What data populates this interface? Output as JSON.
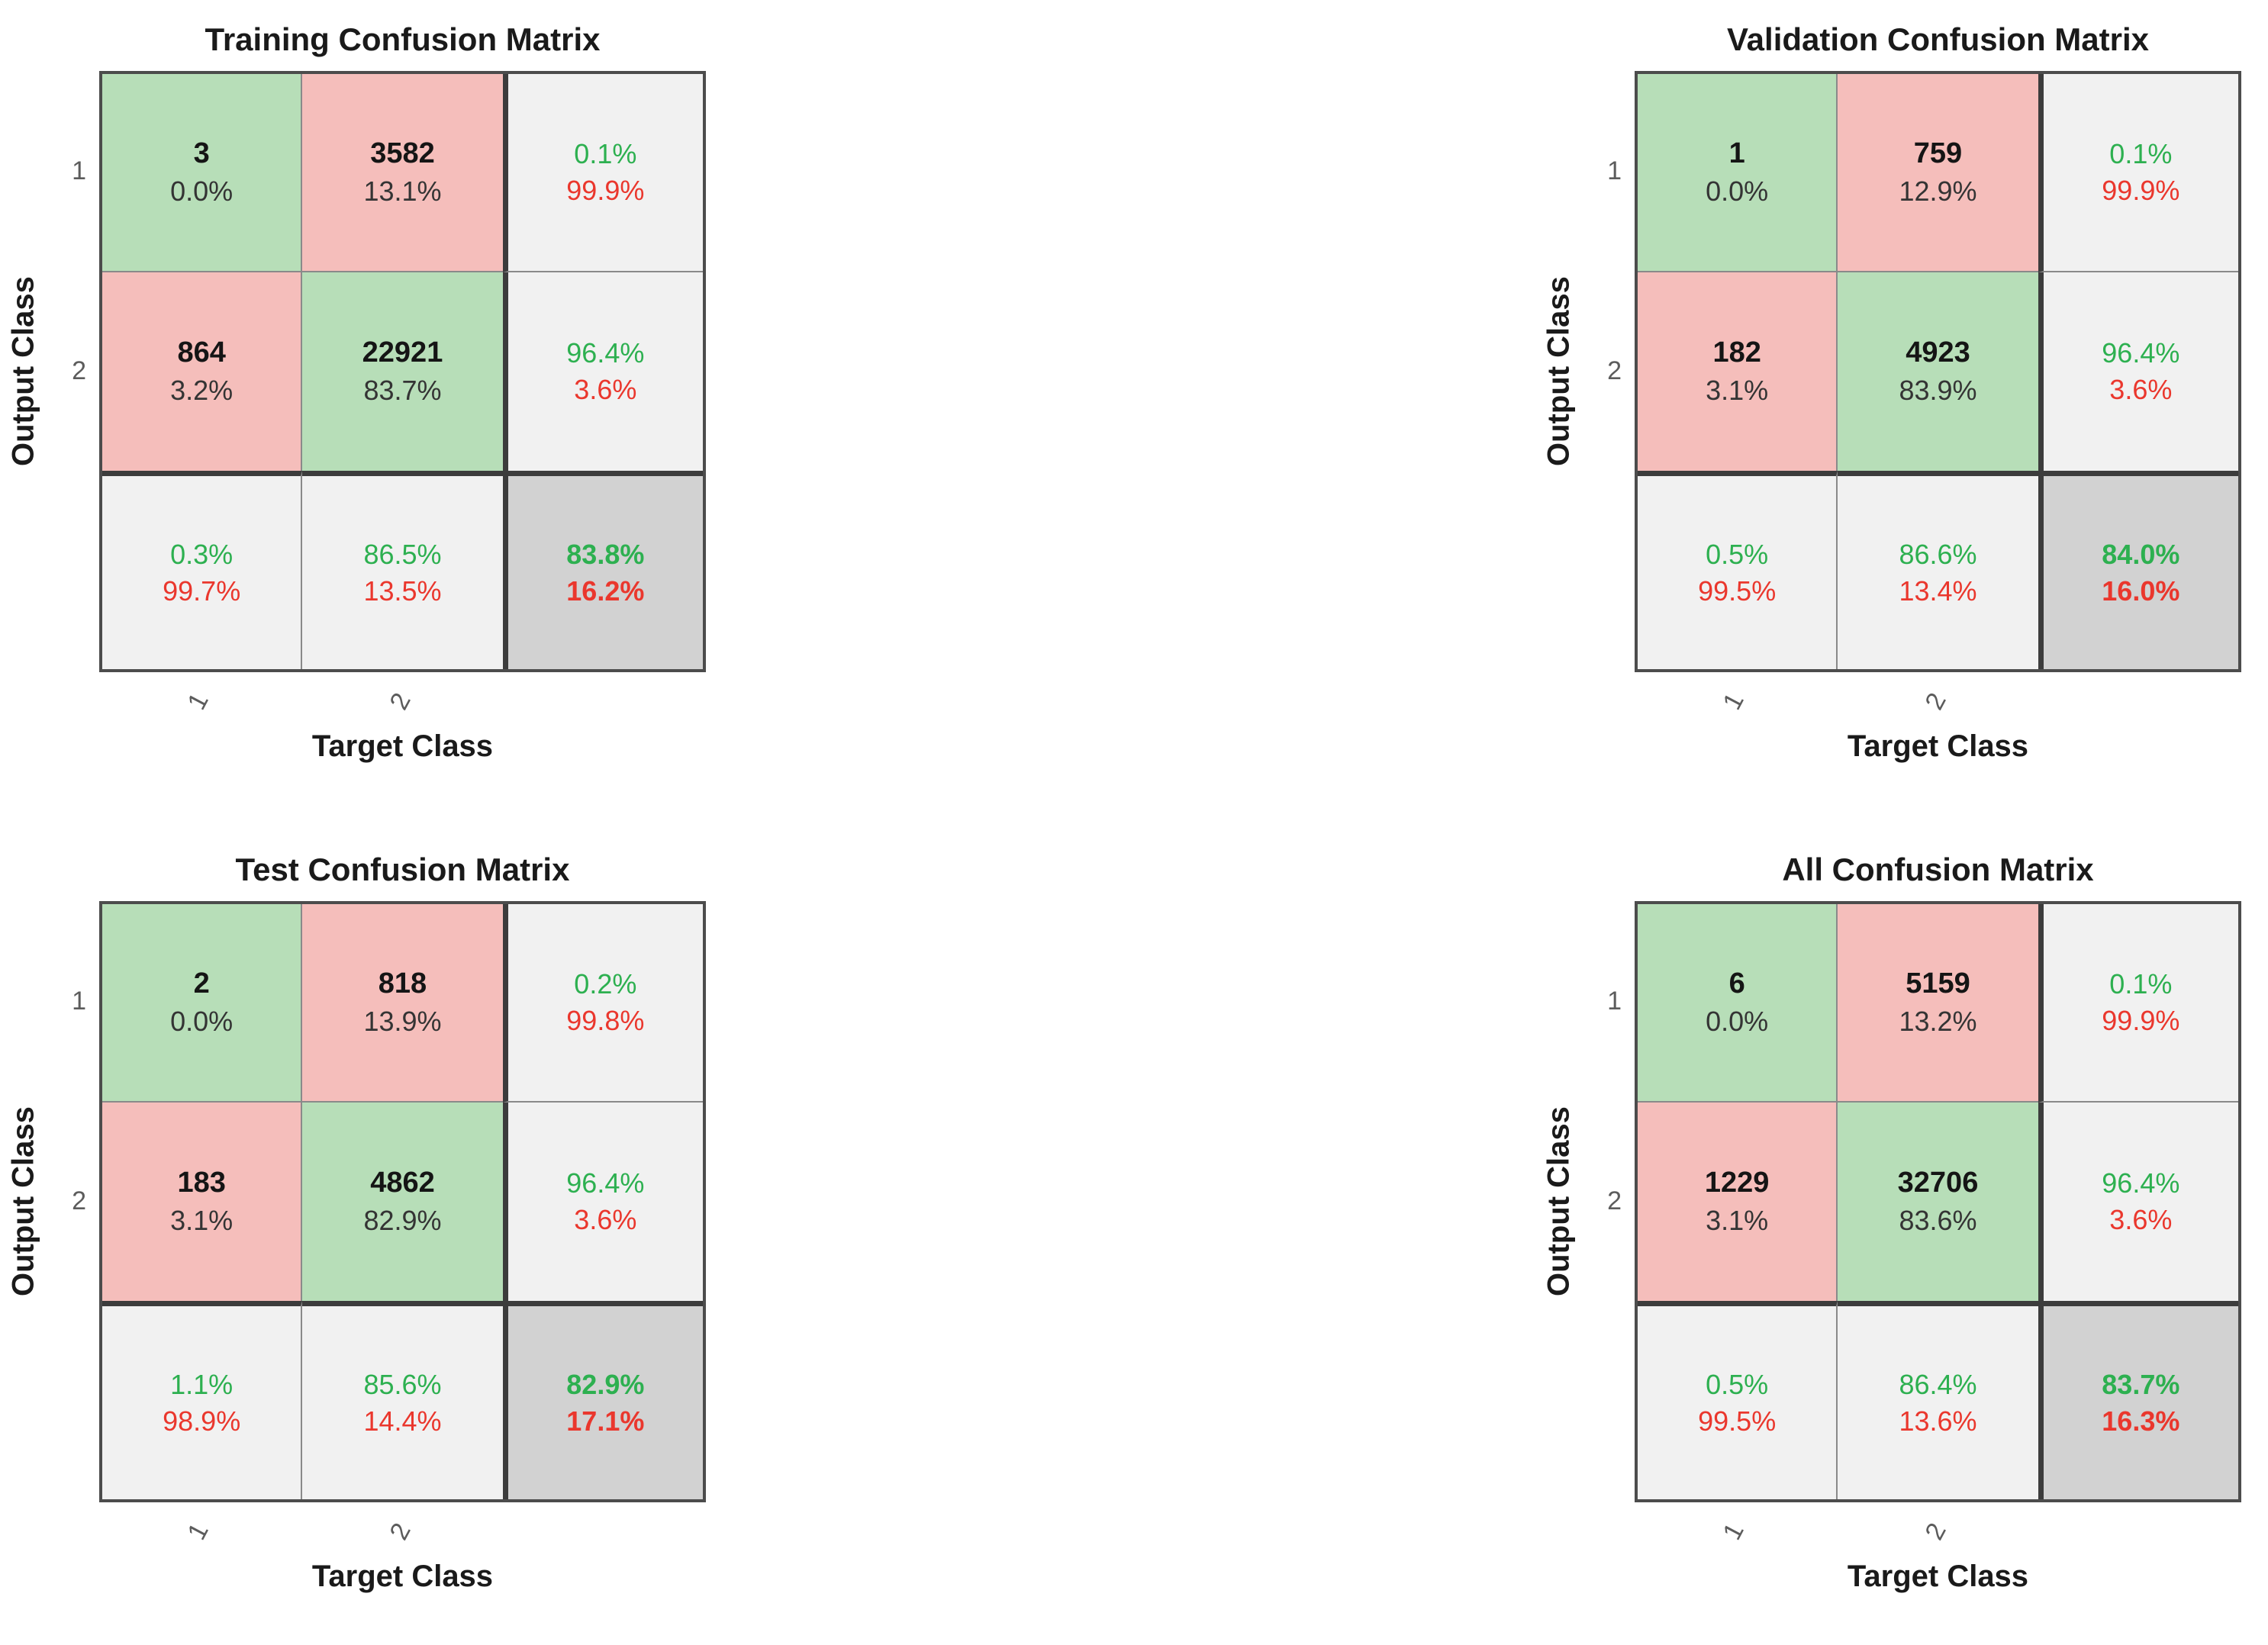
{
  "figure": {
    "background": "#ffffff"
  },
  "colors": {
    "cell_green": "#b7deb8",
    "cell_red": "#f5bebb",
    "cell_gray": "#f1f1f1",
    "cell_gray_dark": "#d2d2d2",
    "text_green": "#2db050",
    "text_red": "#ea372d",
    "text_black": "#151515",
    "text_dark": "#343434",
    "grid_thin": "#8a8a8a",
    "grid_heavy": "#3c3c3c"
  },
  "chart_data": [
    {
      "type": "heatmap",
      "subtype": "confusion-matrix",
      "title": "Training Confusion Matrix",
      "xlabel": "Target Class",
      "ylabel": "Output Class",
      "x_tick_labels": [
        "1",
        "2"
      ],
      "y_tick_labels": [
        "1",
        "2"
      ],
      "counts": [
        [
          3,
          3582
        ],
        [
          864,
          22921
        ]
      ],
      "cells": [
        {
          "kind": "count",
          "bg": "green",
          "line1": "3",
          "line2": "0.0%",
          "line1_style": "count",
          "line2_style": "pct"
        },
        {
          "kind": "count",
          "bg": "red",
          "line1": "3582",
          "line2": "13.1%",
          "line1_style": "count",
          "line2_style": "pct"
        },
        {
          "kind": "summary",
          "bg": "light",
          "line1": "0.1%",
          "line2": "99.9%",
          "line1_style": "green",
          "line2_style": "red"
        },
        {
          "kind": "count",
          "bg": "red",
          "line1": "864",
          "line2": "3.2%",
          "line1_style": "count",
          "line2_style": "pct"
        },
        {
          "kind": "count",
          "bg": "green",
          "line1": "22921",
          "line2": "83.7%",
          "line1_style": "count",
          "line2_style": "pct"
        },
        {
          "kind": "summary",
          "bg": "light",
          "line1": "96.4%",
          "line2": "3.6%",
          "line1_style": "green",
          "line2_style": "red"
        },
        {
          "kind": "summary",
          "bg": "light",
          "line1": "0.3%",
          "line2": "99.7%",
          "line1_style": "green",
          "line2_style": "red"
        },
        {
          "kind": "summary",
          "bg": "light",
          "line1": "86.5%",
          "line2": "13.5%",
          "line1_style": "green",
          "line2_style": "red"
        },
        {
          "kind": "total",
          "bg": "dark",
          "line1": "83.8%",
          "line2": "16.2%",
          "line1_style": "green-bold",
          "line2_style": "red-bold"
        }
      ]
    },
    {
      "type": "heatmap",
      "subtype": "confusion-matrix",
      "title": "Validation Confusion Matrix",
      "xlabel": "Target Class",
      "ylabel": "Output Class",
      "x_tick_labels": [
        "1",
        "2"
      ],
      "y_tick_labels": [
        "1",
        "2"
      ],
      "counts": [
        [
          1,
          759
        ],
        [
          182,
          4923
        ]
      ],
      "cells": [
        {
          "kind": "count",
          "bg": "green",
          "line1": "1",
          "line2": "0.0%",
          "line1_style": "count",
          "line2_style": "pct"
        },
        {
          "kind": "count",
          "bg": "red",
          "line1": "759",
          "line2": "12.9%",
          "line1_style": "count",
          "line2_style": "pct"
        },
        {
          "kind": "summary",
          "bg": "light",
          "line1": "0.1%",
          "line2": "99.9%",
          "line1_style": "green",
          "line2_style": "red"
        },
        {
          "kind": "count",
          "bg": "red",
          "line1": "182",
          "line2": "3.1%",
          "line1_style": "count",
          "line2_style": "pct"
        },
        {
          "kind": "count",
          "bg": "green",
          "line1": "4923",
          "line2": "83.9%",
          "line1_style": "count",
          "line2_style": "pct"
        },
        {
          "kind": "summary",
          "bg": "light",
          "line1": "96.4%",
          "line2": "3.6%",
          "line1_style": "green",
          "line2_style": "red"
        },
        {
          "kind": "summary",
          "bg": "light",
          "line1": "0.5%",
          "line2": "99.5%",
          "line1_style": "green",
          "line2_style": "red"
        },
        {
          "kind": "summary",
          "bg": "light",
          "line1": "86.6%",
          "line2": "13.4%",
          "line1_style": "green",
          "line2_style": "red"
        },
        {
          "kind": "total",
          "bg": "dark",
          "line1": "84.0%",
          "line2": "16.0%",
          "line1_style": "green-bold",
          "line2_style": "red-bold"
        }
      ]
    },
    {
      "type": "heatmap",
      "subtype": "confusion-matrix",
      "title": "Test Confusion Matrix",
      "xlabel": "Target Class",
      "ylabel": "Output Class",
      "x_tick_labels": [
        "1",
        "2"
      ],
      "y_tick_labels": [
        "1",
        "2"
      ],
      "counts": [
        [
          2,
          818
        ],
        [
          183,
          4862
        ]
      ],
      "cells": [
        {
          "kind": "count",
          "bg": "green",
          "line1": "2",
          "line2": "0.0%",
          "line1_style": "count",
          "line2_style": "pct"
        },
        {
          "kind": "count",
          "bg": "red",
          "line1": "818",
          "line2": "13.9%",
          "line1_style": "count",
          "line2_style": "pct"
        },
        {
          "kind": "summary",
          "bg": "light",
          "line1": "0.2%",
          "line2": "99.8%",
          "line1_style": "green",
          "line2_style": "red"
        },
        {
          "kind": "count",
          "bg": "red",
          "line1": "183",
          "line2": "3.1%",
          "line1_style": "count",
          "line2_style": "pct"
        },
        {
          "kind": "count",
          "bg": "green",
          "line1": "4862",
          "line2": "82.9%",
          "line1_style": "count",
          "line2_style": "pct"
        },
        {
          "kind": "summary",
          "bg": "light",
          "line1": "96.4%",
          "line2": "3.6%",
          "line1_style": "green",
          "line2_style": "red"
        },
        {
          "kind": "summary",
          "bg": "light",
          "line1": "1.1%",
          "line2": "98.9%",
          "line1_style": "green",
          "line2_style": "red"
        },
        {
          "kind": "summary",
          "bg": "light",
          "line1": "85.6%",
          "line2": "14.4%",
          "line1_style": "green",
          "line2_style": "red"
        },
        {
          "kind": "total",
          "bg": "dark",
          "line1": "82.9%",
          "line2": "17.1%",
          "line1_style": "green-bold",
          "line2_style": "red-bold"
        }
      ]
    },
    {
      "type": "heatmap",
      "subtype": "confusion-matrix",
      "title": "All Confusion Matrix",
      "xlabel": "Target Class",
      "ylabel": "Output Class",
      "x_tick_labels": [
        "1",
        "2"
      ],
      "y_tick_labels": [
        "1",
        "2"
      ],
      "counts": [
        [
          6,
          5159
        ],
        [
          1229,
          32706
        ]
      ],
      "cells": [
        {
          "kind": "count",
          "bg": "green",
          "line1": "6",
          "line2": "0.0%",
          "line1_style": "count",
          "line2_style": "pct"
        },
        {
          "kind": "count",
          "bg": "red",
          "line1": "5159",
          "line2": "13.2%",
          "line1_style": "count",
          "line2_style": "pct"
        },
        {
          "kind": "summary",
          "bg": "light",
          "line1": "0.1%",
          "line2": "99.9%",
          "line1_style": "green",
          "line2_style": "red"
        },
        {
          "kind": "count",
          "bg": "red",
          "line1": "1229",
          "line2": "3.1%",
          "line1_style": "count",
          "line2_style": "pct"
        },
        {
          "kind": "count",
          "bg": "green",
          "line1": "32706",
          "line2": "83.6%",
          "line1_style": "count",
          "line2_style": "pct"
        },
        {
          "kind": "summary",
          "bg": "light",
          "line1": "96.4%",
          "line2": "3.6%",
          "line1_style": "green",
          "line2_style": "red"
        },
        {
          "kind": "summary",
          "bg": "light",
          "line1": "0.5%",
          "line2": "99.5%",
          "line1_style": "green",
          "line2_style": "red"
        },
        {
          "kind": "summary",
          "bg": "light",
          "line1": "86.4%",
          "line2": "13.6%",
          "line1_style": "green",
          "line2_style": "red"
        },
        {
          "kind": "total",
          "bg": "dark",
          "line1": "83.7%",
          "line2": "16.3%",
          "line1_style": "green-bold",
          "line2_style": "red-bold"
        }
      ]
    }
  ]
}
